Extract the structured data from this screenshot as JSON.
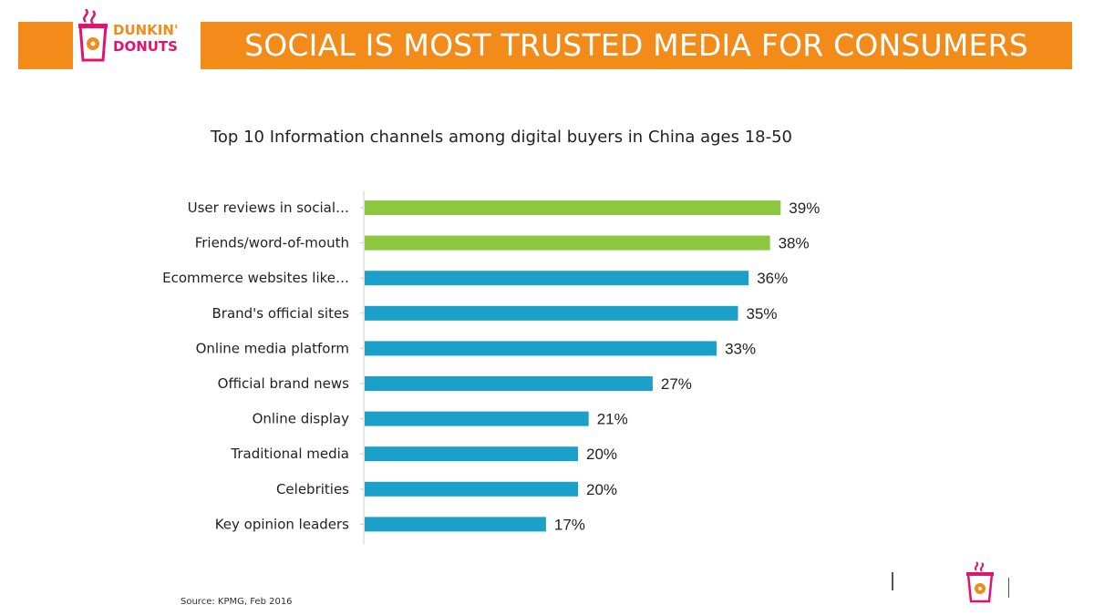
{
  "header": {
    "title": "SOCIAL IS MOST TRUSTED MEDIA FOR CONSUMERS",
    "logo_text": [
      "DUNKIN'",
      "DONUTS"
    ],
    "colors": {
      "orange": "#f28b1a",
      "pink": "#e2136e"
    }
  },
  "source": "Source: KPMG, Feb 2016",
  "chart_data": {
    "type": "bar",
    "orientation": "horizontal",
    "title": "Top 10 Information channels among digital buyers in China ages 18-50",
    "categories": [
      "User reviews in social…",
      "Friends/word-of-mouth",
      "Ecommerce websites like…",
      "Brand's official sites",
      "Online media platform",
      "Official brand news",
      "Online display",
      "Traditional media",
      "Celebrities",
      "Key opinion leaders"
    ],
    "values": [
      39,
      38,
      36,
      35,
      33,
      27,
      21,
      20,
      20,
      17
    ],
    "value_labels": [
      "39%",
      "38%",
      "36%",
      "35%",
      "33%",
      "27%",
      "21%",
      "20%",
      "20%",
      "17%"
    ],
    "colors": [
      "#8dc63f",
      "#8dc63f",
      "#1aa0c9",
      "#1aa0c9",
      "#1aa0c9",
      "#1aa0c9",
      "#1aa0c9",
      "#1aa0c9",
      "#1aa0c9",
      "#1aa0c9"
    ],
    "xlim": [
      0,
      40
    ],
    "grid": false,
    "legend": "none"
  }
}
